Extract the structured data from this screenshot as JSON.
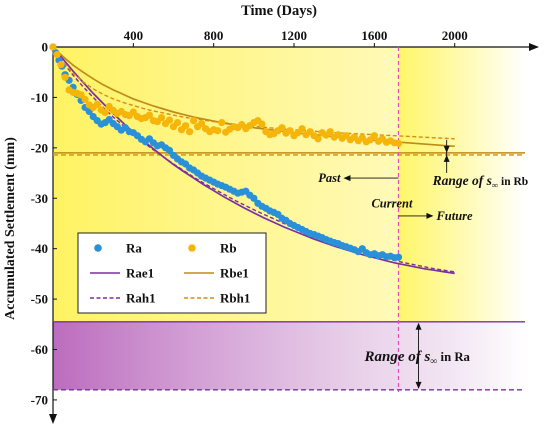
{
  "chart_data": {
    "type": "scatter",
    "xlabel": "Time (Days)",
    "ylabel": "Accumulated Settlement (mm)",
    "xlim": [
      0,
      2350
    ],
    "ylim": [
      -72,
      0
    ],
    "x_ticks": [
      400,
      800,
      1200,
      1600,
      2000
    ],
    "x_tick_labels": [
      "400",
      "800",
      "1200",
      "1600",
      "2000"
    ],
    "y_ticks": [
      0,
      -10,
      -20,
      -30,
      -40,
      -50,
      -60,
      -70
    ],
    "y_tick_labels": [
      "0",
      "-10",
      "-20",
      "-30",
      "-40",
      "-50",
      "-60",
      "-70"
    ],
    "current_day": 1720,
    "legend": {
      "placement": "center-left",
      "entries": [
        {
          "label": "Ra",
          "kind": "dot",
          "color": "#2a90d8"
        },
        {
          "label": "Rb",
          "kind": "dot",
          "color": "#f5b50a"
        },
        {
          "label": "Rae1",
          "kind": "solid",
          "color": "#7b2fa0"
        },
        {
          "label": "Rbe1",
          "kind": "solid",
          "color": "#c08a1a"
        },
        {
          "label": "Rah1",
          "kind": "dashed",
          "color": "#7b2fa0"
        },
        {
          "label": "Rbh1",
          "kind": "dashed",
          "color": "#d98c10"
        }
      ]
    },
    "series": [
      {
        "name": "Ra",
        "kind": "scatter",
        "color": "#2a90d8",
        "x": [
          0,
          15,
          30,
          45,
          60,
          80,
          100,
          120,
          140,
          160,
          180,
          200,
          220,
          240,
          260,
          280,
          300,
          320,
          340,
          360,
          380,
          400,
          420,
          440,
          460,
          480,
          500,
          520,
          540,
          560,
          580,
          600,
          620,
          640,
          660,
          680,
          700,
          720,
          740,
          760,
          780,
          800,
          820,
          840,
          860,
          880,
          900,
          920,
          940,
          960,
          980,
          1000,
          1020,
          1040,
          1060,
          1080,
          1100,
          1120,
          1140,
          1160,
          1180,
          1200,
          1220,
          1240,
          1260,
          1280,
          1300,
          1320,
          1340,
          1360,
          1380,
          1400,
          1420,
          1440,
          1460,
          1480,
          1500,
          1520,
          1540,
          1560,
          1580,
          1600,
          1620,
          1640,
          1660,
          1680,
          1700,
          1720
        ],
        "y": [
          0,
          -1.2,
          -2.6,
          -3.8,
          -5.5,
          -6.6,
          -8.0,
          -9.4,
          -10.6,
          -12.0,
          -12.8,
          -13.8,
          -14.6,
          -15.3,
          -15.0,
          -14.4,
          -15.2,
          -15.8,
          -16.5,
          -16.0,
          -16.8,
          -17.0,
          -17.6,
          -18.3,
          -18.8,
          -18.2,
          -19.0,
          -19.6,
          -19.4,
          -20.0,
          -20.5,
          -21.5,
          -22.2,
          -22.8,
          -23.2,
          -24.0,
          -24.4,
          -25.0,
          -25.6,
          -26.0,
          -26.4,
          -26.8,
          -27.2,
          -27.5,
          -27.8,
          -28.2,
          -28.6,
          -29.0,
          -28.8,
          -28.6,
          -29.4,
          -30.0,
          -31.0,
          -31.6,
          -32.0,
          -32.5,
          -32.8,
          -33.2,
          -34.0,
          -34.4,
          -35.0,
          -35.4,
          -35.8,
          -36.2,
          -36.6,
          -37.0,
          -37.2,
          -37.5,
          -37.8,
          -38.2,
          -38.5,
          -38.8,
          -39.0,
          -39.4,
          -39.6,
          -39.9,
          -40.2,
          -40.6,
          -40.0,
          -40.8,
          -41.2,
          -41.0,
          -41.4,
          -41.2,
          -41.6,
          -41.5,
          -41.8,
          -41.7
        ]
      },
      {
        "name": "Rb",
        "kind": "scatter",
        "color": "#f5b50a",
        "x": [
          0,
          20,
          40,
          60,
          80,
          100,
          120,
          140,
          160,
          180,
          200,
          220,
          240,
          260,
          280,
          300,
          320,
          340,
          360,
          380,
          400,
          420,
          440,
          460,
          480,
          500,
          520,
          540,
          560,
          580,
          600,
          620,
          640,
          660,
          680,
          700,
          720,
          740,
          760,
          780,
          800,
          820,
          840,
          860,
          880,
          900,
          920,
          940,
          960,
          980,
          1000,
          1020,
          1040,
          1060,
          1080,
          1100,
          1120,
          1140,
          1160,
          1180,
          1200,
          1220,
          1240,
          1260,
          1280,
          1300,
          1320,
          1340,
          1360,
          1380,
          1400,
          1420,
          1440,
          1460,
          1480,
          1500,
          1520,
          1540,
          1560,
          1580,
          1600,
          1620,
          1640,
          1660,
          1680,
          1700,
          1720
        ],
        "y": [
          0,
          -1.5,
          -3.5,
          -6.0,
          -8.5,
          -9.0,
          -9.2,
          -9.5,
          -10.4,
          -11.5,
          -12.0,
          -11.4,
          -12.5,
          -13.0,
          -11.8,
          -12.6,
          -13.2,
          -12.8,
          -13.4,
          -13.6,
          -12.9,
          -13.8,
          -14.2,
          -14.0,
          -13.5,
          -14.6,
          -14.8,
          -14.0,
          -15.2,
          -14.5,
          -15.8,
          -15.0,
          -16.4,
          -15.6,
          -16.8,
          -14.6,
          -15.8,
          -15.2,
          -16.2,
          -16.8,
          -16.4,
          -16.6,
          -15.0,
          -16.9,
          -16.3,
          -15.8,
          -16.0,
          -15.4,
          -16.2,
          -15.6,
          -15.0,
          -14.6,
          -15.3,
          -16.8,
          -17.4,
          -17.2,
          -16.6,
          -16.0,
          -17.1,
          -16.6,
          -17.6,
          -17.0,
          -16.2,
          -17.4,
          -16.8,
          -17.6,
          -18.2,
          -17.0,
          -17.5,
          -16.8,
          -17.9,
          -17.4,
          -18.1,
          -17.6,
          -18.4,
          -17.9,
          -18.6,
          -18.0,
          -18.8,
          -18.4,
          -17.6,
          -18.7,
          -18.2,
          -18.9,
          -18.6,
          -19.0,
          -19.1
        ]
      },
      {
        "name": "Rae1",
        "kind": "solid",
        "color": "#7b2fa0",
        "x": [
          0,
          50,
          100,
          150,
          200,
          250,
          300,
          350,
          400,
          450,
          500,
          550,
          600,
          650,
          700,
          750,
          800,
          850,
          900,
          950,
          1000,
          1050,
          1100,
          1150,
          1200,
          1250,
          1300,
          1350,
          1400,
          1450,
          1500,
          1550,
          1600,
          1650,
          1700,
          1750,
          1800,
          1850,
          1900,
          1950,
          2000
        ],
        "y": [
          0,
          -2.4,
          -4.8,
          -7.0,
          -9.2,
          -11.2,
          -13.2,
          -15.1,
          -16.9,
          -18.6,
          -20.2,
          -21.8,
          -23.3,
          -24.7,
          -26.0,
          -27.3,
          -28.5,
          -29.7,
          -30.8,
          -31.9,
          -32.9,
          -33.9,
          -34.8,
          -35.7,
          -36.5,
          -37.3,
          -38.1,
          -38.8,
          -39.5,
          -40.1,
          -40.7,
          -41.3,
          -41.8,
          -42.3,
          -42.8,
          -43.2,
          -43.6,
          -44.0,
          -44.3,
          -44.6,
          -44.9
        ]
      },
      {
        "name": "Rah1",
        "kind": "dashed",
        "color": "#7b2fa0",
        "x": [
          0,
          50,
          100,
          150,
          200,
          250,
          300,
          350,
          400,
          450,
          500,
          550,
          600,
          650,
          700,
          750,
          800,
          850,
          900,
          950,
          1000,
          1050,
          1100,
          1150,
          1200,
          1250,
          1300,
          1350,
          1400,
          1450,
          1500,
          1550,
          1600,
          1650,
          1700,
          1750,
          1800,
          1850,
          1900,
          1950,
          2000
        ],
        "y": [
          0,
          -3.0,
          -5.6,
          -7.9,
          -10.0,
          -12.0,
          -13.9,
          -15.6,
          -17.3,
          -18.9,
          -20.4,
          -21.8,
          -23.2,
          -24.5,
          -25.8,
          -27.0,
          -28.1,
          -29.2,
          -30.3,
          -31.3,
          -32.3,
          -33.2,
          -34.1,
          -35.0,
          -35.8,
          -36.6,
          -37.4,
          -38.1,
          -38.8,
          -39.5,
          -40.1,
          -40.7,
          -41.3,
          -41.8,
          -42.3,
          -42.8,
          -43.2,
          -43.6,
          -44.0,
          -44.3,
          -44.6
        ]
      },
      {
        "name": "Rbe1",
        "kind": "solid",
        "color": "#c08a1a",
        "x": [
          0,
          50,
          100,
          150,
          200,
          250,
          300,
          350,
          400,
          450,
          500,
          550,
          600,
          650,
          700,
          750,
          800,
          850,
          900,
          950,
          1000,
          1100,
          1200,
          1300,
          1400,
          1500,
          1600,
          1700,
          1800,
          1900,
          2000
        ],
        "y": [
          0,
          -1.9,
          -3.6,
          -5.0,
          -6.3,
          -7.5,
          -8.5,
          -9.4,
          -10.3,
          -11.0,
          -11.7,
          -12.3,
          -12.9,
          -13.4,
          -13.9,
          -14.3,
          -14.7,
          -15.1,
          -15.4,
          -15.7,
          -16.0,
          -16.5,
          -17.0,
          -17.4,
          -17.8,
          -18.2,
          -18.5,
          -18.8,
          -19.1,
          -19.4,
          -19.7
        ]
      },
      {
        "name": "Rbh1",
        "kind": "dashed",
        "color": "#d98c10",
        "x": [
          0,
          50,
          100,
          150,
          200,
          250,
          300,
          350,
          400,
          450,
          500,
          550,
          600,
          650,
          700,
          750,
          800,
          850,
          900,
          950,
          1000,
          1100,
          1200,
          1300,
          1400,
          1500,
          1600,
          1700,
          1800,
          1900,
          2000
        ],
        "y": [
          0,
          -3.0,
          -5.2,
          -6.9,
          -8.3,
          -9.4,
          -10.3,
          -11.0,
          -11.6,
          -12.2,
          -12.7,
          -13.1,
          -13.5,
          -13.9,
          -14.2,
          -14.5,
          -14.8,
          -15.0,
          -15.3,
          -15.5,
          -15.7,
          -16.1,
          -16.4,
          -16.7,
          -17.0,
          -17.2,
          -17.4,
          -17.6,
          -17.8,
          -18.0,
          -18.2
        ]
      }
    ],
    "reference_lines": [
      {
        "name": "Rb-limit-solid",
        "y": -21.0,
        "color": "#c08a1a",
        "style": "solid"
      },
      {
        "name": "Rb-limit-dashed",
        "y": -21.4,
        "color": "#d98c10",
        "style": "dashed"
      },
      {
        "name": "Ra-limit-solid",
        "y": -54.5,
        "color": "#7b2fa0",
        "style": "solid"
      },
      {
        "name": "Ra-limit-dashed",
        "y": -68.0,
        "color": "#7b2fa0",
        "style": "dashed"
      }
    ],
    "annotations": {
      "past": "Past",
      "current": "Current",
      "future": "Future",
      "range_rb_prefix": "Range of ",
      "range_rb_symbol": "s",
      "range_rb_subscript": "∞",
      "range_rb_suffix": " in Rb",
      "range_ra_prefix": "Range of ",
      "range_ra_symbol": "s",
      "range_ra_subscript": "∞",
      "range_ra_suffix": " in Ra"
    },
    "colors": {
      "yellow_band": "#fff25a",
      "purple_band": "#a24fae",
      "current_line": "#e050c0"
    }
  }
}
